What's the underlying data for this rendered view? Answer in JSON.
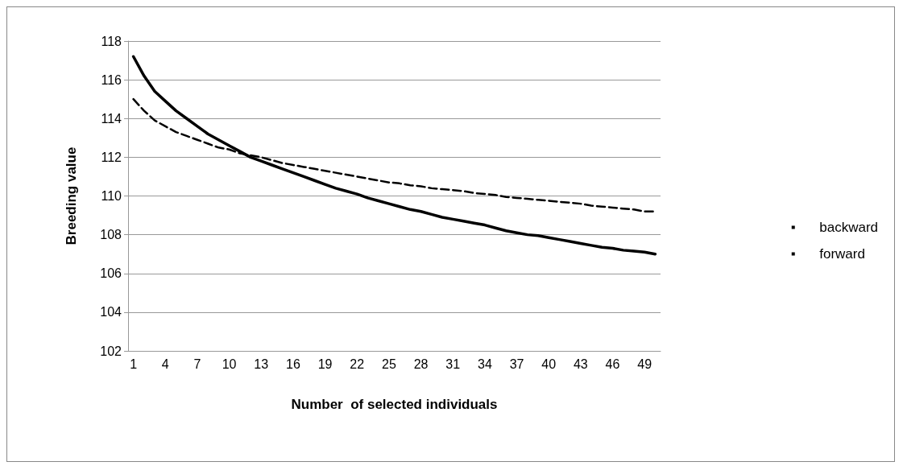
{
  "chart_data": {
    "type": "line",
    "xlabel": "Number  of selected individuals",
    "ylabel": "Breeding value",
    "categories": [
      "1",
      null,
      null,
      "4",
      null,
      null,
      "7",
      null,
      null,
      "10",
      null,
      null,
      "13",
      null,
      null,
      "16",
      null,
      null,
      "19",
      null,
      null,
      "22",
      null,
      null,
      "25",
      null,
      null,
      "28",
      null,
      null,
      "31",
      null,
      null,
      "34",
      null,
      null,
      "37",
      null,
      null,
      "40",
      null,
      null,
      "43",
      null,
      null,
      "46",
      null,
      null,
      "49",
      null
    ],
    "series": [
      {
        "name": "backward",
        "color": "#000000",
        "line_style": "solid",
        "values": [
          117.2,
          116.2,
          115.4,
          114.9,
          114.4,
          114.0,
          113.6,
          113.2,
          112.9,
          112.6,
          112.3,
          112.0,
          111.8,
          111.6,
          111.4,
          111.2,
          111.0,
          110.8,
          110.6,
          110.4,
          110.25,
          110.1,
          109.9,
          109.75,
          109.6,
          109.45,
          109.3,
          109.2,
          109.05,
          108.9,
          108.8,
          108.7,
          108.6,
          108.5,
          108.35,
          108.2,
          108.1,
          108.0,
          107.95,
          107.85,
          107.75,
          107.65,
          107.55,
          107.45,
          107.35,
          107.3,
          107.2,
          107.15,
          107.1,
          107.0
        ]
      },
      {
        "name": "forward",
        "color": "#000000",
        "line_style": "dashed",
        "values": [
          115.0,
          114.4,
          113.9,
          113.6,
          113.3,
          113.1,
          112.9,
          112.7,
          112.5,
          112.4,
          112.2,
          112.1,
          112.0,
          111.85,
          111.7,
          111.6,
          111.5,
          111.4,
          111.3,
          111.2,
          111.1,
          111.0,
          110.9,
          110.8,
          110.7,
          110.65,
          110.55,
          110.5,
          110.4,
          110.35,
          110.3,
          110.25,
          110.15,
          110.1,
          110.05,
          109.95,
          109.9,
          109.85,
          109.8,
          109.75,
          109.7,
          109.65,
          109.6,
          109.5,
          109.45,
          109.4,
          109.35,
          109.3,
          109.2,
          109.2
        ]
      }
    ],
    "ylim": [
      102,
      118
    ],
    "yticks": [
      102,
      104,
      106,
      108,
      110,
      112,
      114,
      116,
      118
    ],
    "grid": "y",
    "legend": "right",
    "marker": "none"
  }
}
